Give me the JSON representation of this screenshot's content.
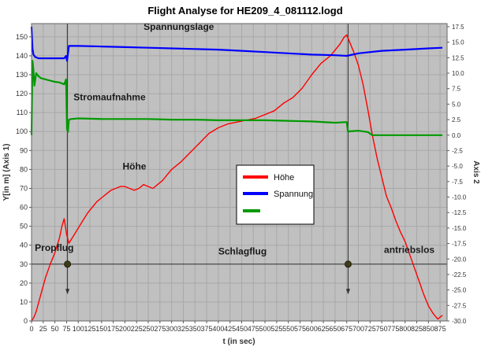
{
  "chart_data": {
    "type": "line",
    "title": "Flight Analyse for HE209_4_081112.logd",
    "xlabel": "t (in sec)",
    "ylabel": "Y[in m]  (Axis 1)",
    "y2label": "Axis 2",
    "xlim": [
      0,
      890
    ],
    "ylim": [
      0,
      157
    ],
    "y2lim": [
      -30,
      18
    ],
    "x_ticks": [
      0,
      25,
      50,
      75,
      100,
      125,
      150,
      175,
      200,
      225,
      250,
      275,
      300,
      325,
      350,
      375,
      400,
      425,
      450,
      475,
      500,
      525,
      550,
      575,
      600,
      625,
      650,
      675,
      700,
      725,
      750,
      775,
      800,
      825,
      850,
      875
    ],
    "y_ticks": [
      0,
      10,
      20,
      30,
      40,
      50,
      60,
      70,
      80,
      90,
      100,
      110,
      120,
      130,
      140,
      150
    ],
    "y2_ticks": [
      "17.5",
      "15.0",
      "12.5",
      "10.0",
      "7.5",
      "5.0",
      "2.5",
      "0.0",
      "-2.5",
      "-5.0",
      "-7.5",
      "-10.0",
      "-12.5",
      "-15.0",
      "-17.5",
      "-20.0",
      "-22.5",
      "-25.0",
      "-27.5",
      "-30.0"
    ],
    "grid": true,
    "background": "#c0c0c0",
    "legend_position": "center",
    "series": [
      {
        "name": "Höhe",
        "axis": "left",
        "color": "#ff0000",
        "x": [
          0,
          5,
          10,
          20,
          30,
          40,
          50,
          60,
          65,
          70,
          75,
          80,
          85,
          90,
          100,
          110,
          120,
          130,
          140,
          150,
          160,
          170,
          180,
          190,
          200,
          210,
          220,
          230,
          240,
          250,
          260,
          270,
          280,
          290,
          300,
          320,
          340,
          360,
          380,
          400,
          420,
          440,
          460,
          480,
          500,
          520,
          540,
          560,
          580,
          600,
          620,
          640,
          660,
          670,
          675,
          680,
          690,
          700,
          710,
          720,
          730,
          740,
          750,
          760,
          770,
          780,
          790,
          800,
          810,
          820,
          830,
          840,
          850,
          860,
          870,
          875,
          880
        ],
        "values": [
          0,
          2,
          5,
          14,
          23,
          30,
          36,
          44,
          50,
          54,
          46,
          41,
          43,
          45,
          49,
          53,
          57,
          60,
          63,
          65,
          67,
          69,
          70,
          71,
          71,
          70,
          69,
          70,
          72,
          71,
          70,
          72,
          74,
          77,
          80,
          84,
          89,
          94,
          99,
          102,
          104,
          105,
          106,
          107,
          109,
          111,
          115,
          118,
          123,
          130,
          136,
          140,
          146,
          150,
          151,
          148,
          142,
          135,
          125,
          112,
          98,
          86,
          76,
          66,
          60,
          53,
          47,
          42,
          35,
          28,
          21,
          14,
          8,
          4,
          1,
          2,
          3
        ]
      },
      {
        "name": "Spannung",
        "axis": "right",
        "color": "#0000ff",
        "x": [
          0,
          2,
          4,
          8,
          15,
          30,
          50,
          70,
          74,
          76,
          80,
          100,
          150,
          200,
          250,
          300,
          350,
          400,
          450,
          500,
          550,
          600,
          650,
          675,
          700,
          750,
          800,
          850,
          880
        ],
        "values": [
          17.5,
          14.0,
          13.0,
          12.6,
          12.4,
          12.4,
          12.4,
          12.4,
          12.8,
          12.0,
          14.4,
          14.4,
          14.3,
          14.2,
          14.1,
          14.0,
          13.9,
          13.8,
          13.6,
          13.4,
          13.2,
          13.0,
          12.9,
          12.8,
          13.2,
          13.6,
          13.8,
          14.0,
          14.1
        ]
      },
      {
        "name": "",
        "axis": "right",
        "color": "#009900",
        "x": [
          0,
          2,
          4,
          6,
          10,
          15,
          20,
          30,
          40,
          50,
          60,
          70,
          74,
          76,
          78,
          80,
          85,
          100,
          150,
          200,
          250,
          300,
          350,
          400,
          450,
          500,
          550,
          600,
          650,
          675,
          678,
          680,
          700,
          720,
          730,
          750,
          800,
          850,
          880
        ],
        "values": [
          0.0,
          12.0,
          10.5,
          8.0,
          10.0,
          9.5,
          9.2,
          9.0,
          8.8,
          8.6,
          8.5,
          8.2,
          9.0,
          1.0,
          0.5,
          2.5,
          2.6,
          2.7,
          2.6,
          2.6,
          2.6,
          2.5,
          2.5,
          2.4,
          2.4,
          2.4,
          2.3,
          2.2,
          2.0,
          2.1,
          0.5,
          0.6,
          0.7,
          0.5,
          0.0,
          0.0,
          0.0,
          0.0,
          0.0
        ]
      }
    ],
    "annotations": [
      {
        "text": "Spannungslage",
        "x": 240,
        "y": 17.0,
        "axis": "right"
      },
      {
        "text": "Stromaufnahme",
        "x": 90,
        "y": 5.6,
        "axis": "right"
      },
      {
        "text": "Höhe",
        "x": 195,
        "y": 80,
        "axis": "left"
      },
      {
        "text": "Propflug",
        "x": 7,
        "y": 37,
        "axis": "left"
      },
      {
        "text": "Schlagflug",
        "x": 400,
        "y": 35,
        "axis": "left"
      },
      {
        "text": "antriebslos",
        "x": 755,
        "y": 36,
        "axis": "left"
      }
    ],
    "markers": [
      {
        "x": 77,
        "y": 30
      },
      {
        "x": 678,
        "y": 30
      }
    ],
    "vertical_lines": [
      77,
      678
    ],
    "horizontal_line_y": 30
  }
}
